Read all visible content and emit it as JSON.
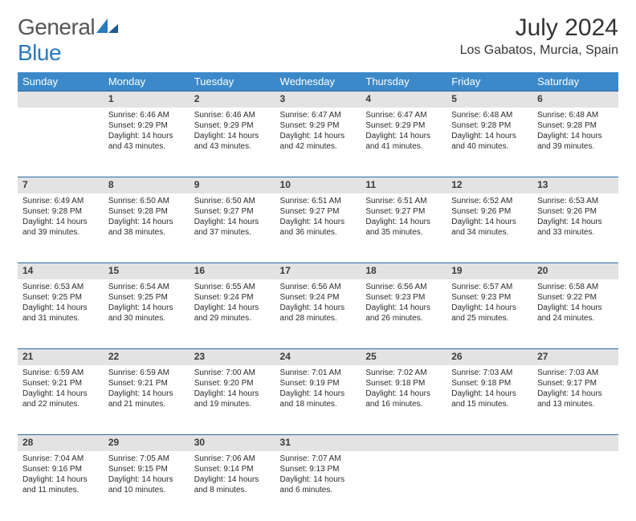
{
  "brand": {
    "part1": "General",
    "part2": "Blue"
  },
  "title": "July 2024",
  "location": "Los Gabatos, Murcia, Spain",
  "colors": {
    "header_bg": "#3b89c9",
    "header_text": "#ffffff",
    "daynum_bg": "#e3e3e3",
    "sep": "#2a6aa3",
    "text": "#2b2b2b",
    "logo_blue": "#2a7abf"
  },
  "weekdays": [
    "Sunday",
    "Monday",
    "Tuesday",
    "Wednesday",
    "Thursday",
    "Friday",
    "Saturday"
  ],
  "weeks": [
    {
      "nums": [
        "",
        "1",
        "2",
        "3",
        "4",
        "5",
        "6"
      ],
      "cells": [
        null,
        {
          "sunrise": "6:46 AM",
          "sunset": "9:29 PM",
          "dl1": "Daylight: 14 hours",
          "dl2": "and 43 minutes."
        },
        {
          "sunrise": "6:46 AM",
          "sunset": "9:29 PM",
          "dl1": "Daylight: 14 hours",
          "dl2": "and 43 minutes."
        },
        {
          "sunrise": "6:47 AM",
          "sunset": "9:29 PM",
          "dl1": "Daylight: 14 hours",
          "dl2": "and 42 minutes."
        },
        {
          "sunrise": "6:47 AM",
          "sunset": "9:29 PM",
          "dl1": "Daylight: 14 hours",
          "dl2": "and 41 minutes."
        },
        {
          "sunrise": "6:48 AM",
          "sunset": "9:28 PM",
          "dl1": "Daylight: 14 hours",
          "dl2": "and 40 minutes."
        },
        {
          "sunrise": "6:48 AM",
          "sunset": "9:28 PM",
          "dl1": "Daylight: 14 hours",
          "dl2": "and 39 minutes."
        }
      ]
    },
    {
      "nums": [
        "7",
        "8",
        "9",
        "10",
        "11",
        "12",
        "13"
      ],
      "cells": [
        {
          "sunrise": "6:49 AM",
          "sunset": "9:28 PM",
          "dl1": "Daylight: 14 hours",
          "dl2": "and 39 minutes."
        },
        {
          "sunrise": "6:50 AM",
          "sunset": "9:28 PM",
          "dl1": "Daylight: 14 hours",
          "dl2": "and 38 minutes."
        },
        {
          "sunrise": "6:50 AM",
          "sunset": "9:27 PM",
          "dl1": "Daylight: 14 hours",
          "dl2": "and 37 minutes."
        },
        {
          "sunrise": "6:51 AM",
          "sunset": "9:27 PM",
          "dl1": "Daylight: 14 hours",
          "dl2": "and 36 minutes."
        },
        {
          "sunrise": "6:51 AM",
          "sunset": "9:27 PM",
          "dl1": "Daylight: 14 hours",
          "dl2": "and 35 minutes."
        },
        {
          "sunrise": "6:52 AM",
          "sunset": "9:26 PM",
          "dl1": "Daylight: 14 hours",
          "dl2": "and 34 minutes."
        },
        {
          "sunrise": "6:53 AM",
          "sunset": "9:26 PM",
          "dl1": "Daylight: 14 hours",
          "dl2": "and 33 minutes."
        }
      ]
    },
    {
      "nums": [
        "14",
        "15",
        "16",
        "17",
        "18",
        "19",
        "20"
      ],
      "cells": [
        {
          "sunrise": "6:53 AM",
          "sunset": "9:25 PM",
          "dl1": "Daylight: 14 hours",
          "dl2": "and 31 minutes."
        },
        {
          "sunrise": "6:54 AM",
          "sunset": "9:25 PM",
          "dl1": "Daylight: 14 hours",
          "dl2": "and 30 minutes."
        },
        {
          "sunrise": "6:55 AM",
          "sunset": "9:24 PM",
          "dl1": "Daylight: 14 hours",
          "dl2": "and 29 minutes."
        },
        {
          "sunrise": "6:56 AM",
          "sunset": "9:24 PM",
          "dl1": "Daylight: 14 hours",
          "dl2": "and 28 minutes."
        },
        {
          "sunrise": "6:56 AM",
          "sunset": "9:23 PM",
          "dl1": "Daylight: 14 hours",
          "dl2": "and 26 minutes."
        },
        {
          "sunrise": "6:57 AM",
          "sunset": "9:23 PM",
          "dl1": "Daylight: 14 hours",
          "dl2": "and 25 minutes."
        },
        {
          "sunrise": "6:58 AM",
          "sunset": "9:22 PM",
          "dl1": "Daylight: 14 hours",
          "dl2": "and 24 minutes."
        }
      ]
    },
    {
      "nums": [
        "21",
        "22",
        "23",
        "24",
        "25",
        "26",
        "27"
      ],
      "cells": [
        {
          "sunrise": "6:59 AM",
          "sunset": "9:21 PM",
          "dl1": "Daylight: 14 hours",
          "dl2": "and 22 minutes."
        },
        {
          "sunrise": "6:59 AM",
          "sunset": "9:21 PM",
          "dl1": "Daylight: 14 hours",
          "dl2": "and 21 minutes."
        },
        {
          "sunrise": "7:00 AM",
          "sunset": "9:20 PM",
          "dl1": "Daylight: 14 hours",
          "dl2": "and 19 minutes."
        },
        {
          "sunrise": "7:01 AM",
          "sunset": "9:19 PM",
          "dl1": "Daylight: 14 hours",
          "dl2": "and 18 minutes."
        },
        {
          "sunrise": "7:02 AM",
          "sunset": "9:18 PM",
          "dl1": "Daylight: 14 hours",
          "dl2": "and 16 minutes."
        },
        {
          "sunrise": "7:03 AM",
          "sunset": "9:18 PM",
          "dl1": "Daylight: 14 hours",
          "dl2": "and 15 minutes."
        },
        {
          "sunrise": "7:03 AM",
          "sunset": "9:17 PM",
          "dl1": "Daylight: 14 hours",
          "dl2": "and 13 minutes."
        }
      ]
    },
    {
      "nums": [
        "28",
        "29",
        "30",
        "31",
        "",
        "",
        ""
      ],
      "cells": [
        {
          "sunrise": "7:04 AM",
          "sunset": "9:16 PM",
          "dl1": "Daylight: 14 hours",
          "dl2": "and 11 minutes."
        },
        {
          "sunrise": "7:05 AM",
          "sunset": "9:15 PM",
          "dl1": "Daylight: 14 hours",
          "dl2": "and 10 minutes."
        },
        {
          "sunrise": "7:06 AM",
          "sunset": "9:14 PM",
          "dl1": "Daylight: 14 hours",
          "dl2": "and 8 minutes."
        },
        {
          "sunrise": "7:07 AM",
          "sunset": "9:13 PM",
          "dl1": "Daylight: 14 hours",
          "dl2": "and 6 minutes."
        },
        null,
        null,
        null
      ]
    }
  ],
  "labels": {
    "sunrise": "Sunrise:",
    "sunset": "Sunset:"
  }
}
